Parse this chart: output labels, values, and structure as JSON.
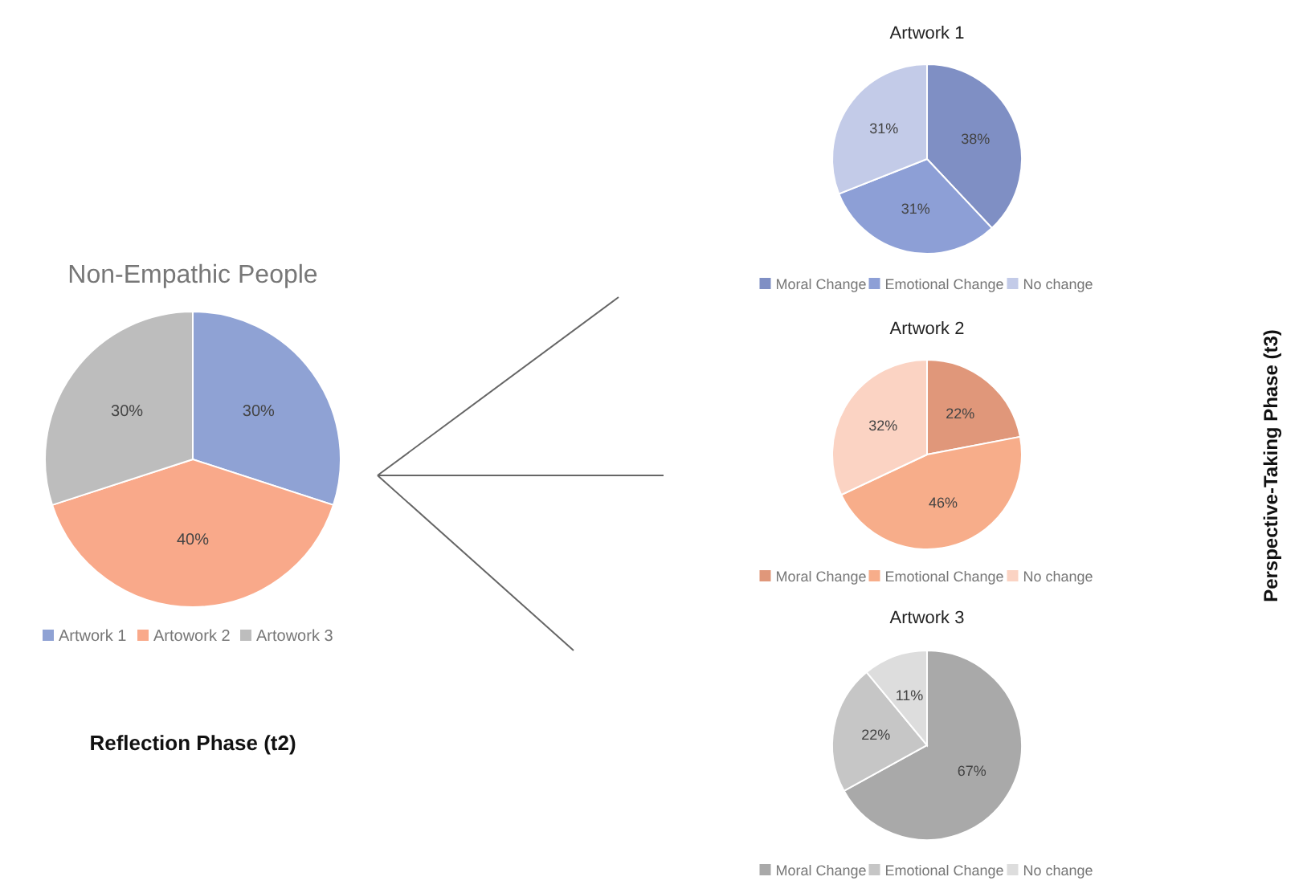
{
  "chart_data": [
    {
      "type": "pie",
      "title": "Non-Empathic People",
      "categories": [
        "Artwork 1",
        "Artowork 2",
        "Artowork 3"
      ],
      "values": [
        30,
        40,
        30
      ],
      "colors": [
        "#8fa2d4",
        "#f9a98a",
        "#bdbdbd"
      ],
      "value_labels": [
        "30%",
        "40%",
        "30%"
      ],
      "legend": "bottom",
      "annotations": [
        "Reflection Phase (t2)"
      ]
    },
    {
      "type": "pie",
      "title": "Artwork 1",
      "categories": [
        "Moral Change",
        "Emotional Change",
        "No change"
      ],
      "values": [
        38,
        31,
        31
      ],
      "colors": [
        "#7f8fc4",
        "#8d9fd6",
        "#c3cbe8"
      ],
      "value_labels": [
        "38%",
        "31%",
        "31%"
      ],
      "legend": "bottom",
      "annotations": [
        "Perspective-Taking Phase (t3)"
      ]
    },
    {
      "type": "pie",
      "title": "Artwork 2",
      "categories": [
        "Moral Change",
        "Emotional Change",
        "No change"
      ],
      "values": [
        22,
        46,
        32
      ],
      "colors": [
        "#e0977a",
        "#f7ad8a",
        "#fbd3c3"
      ],
      "value_labels": [
        "22%",
        "46%",
        "32%"
      ],
      "legend": "bottom"
    },
    {
      "type": "pie",
      "title": "Artwork 3",
      "categories": [
        "Moral Change",
        "Emotional Change",
        "No change"
      ],
      "values": [
        67,
        22,
        11
      ],
      "colors": [
        "#a9a9a9",
        "#c6c6c6",
        "#dddddd"
      ],
      "value_labels": [
        "67%",
        "22%",
        "11%"
      ],
      "legend": "bottom"
    }
  ]
}
